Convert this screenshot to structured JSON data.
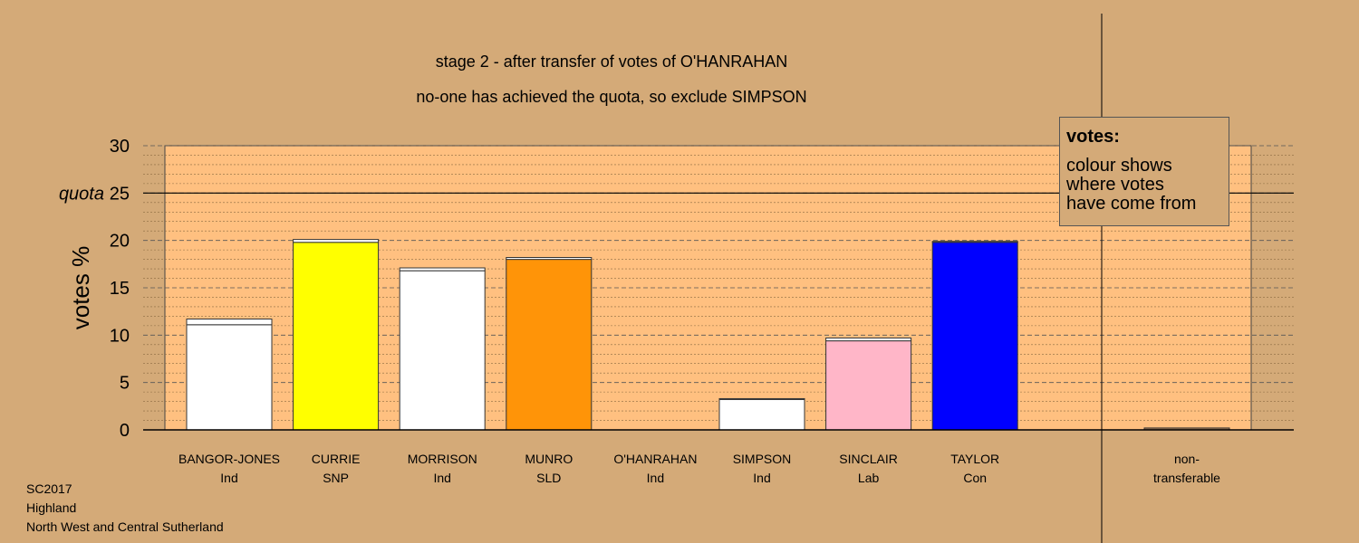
{
  "chart_data": {
    "type": "bar",
    "title": "stage 2 - after transfer of votes of O'HANRAHAN",
    "subtitle": "no-one has achieved the quota, so exclude SIMPSON",
    "ylabel": "votes %",
    "ylim": [
      0,
      30
    ],
    "yticks": [
      0,
      5,
      10,
      15,
      20,
      25,
      30
    ],
    "quota": 25,
    "quota_label": "quota",
    "grid": true,
    "legend_position": "top-right",
    "categories": [
      {
        "name": "BANGOR-JONES",
        "party": "Ind"
      },
      {
        "name": "CURRIE",
        "party": "SNP"
      },
      {
        "name": "MORRISON",
        "party": "Ind"
      },
      {
        "name": "MUNRO",
        "party": "SLD"
      },
      {
        "name": "O'HANRAHAN",
        "party": "Ind"
      },
      {
        "name": "SIMPSON",
        "party": "Ind"
      },
      {
        "name": "SINCLAIR",
        "party": "Lab"
      },
      {
        "name": "TAYLOR",
        "party": "Con"
      }
    ],
    "series": [
      {
        "values": [
          11.1,
          19.8,
          16.8,
          18.0,
          0,
          3.2,
          9.4,
          19.8
        ]
      },
      {
        "values": [
          0.6,
          0.3,
          0.3,
          0.2,
          0,
          0.1,
          0.3,
          0.1
        ]
      }
    ],
    "bar_colors": [
      "#ffffff",
      "#ffff00",
      "#ffffff",
      "#ff9408",
      "#ffffff",
      "#ffffff",
      "#ffb6c8",
      "#0000ff"
    ],
    "transfer_color": "#ffffff",
    "non_transferable": {
      "label_line1": "non-",
      "label_line2": "transferable",
      "value": 0.2
    }
  },
  "legend": {
    "title": "votes:",
    "lines": [
      "colour shows",
      "where votes",
      "have come from"
    ]
  },
  "footer": {
    "line1": "SC2017",
    "line2": "Highland",
    "line3": "North West and Central Sutherland"
  }
}
